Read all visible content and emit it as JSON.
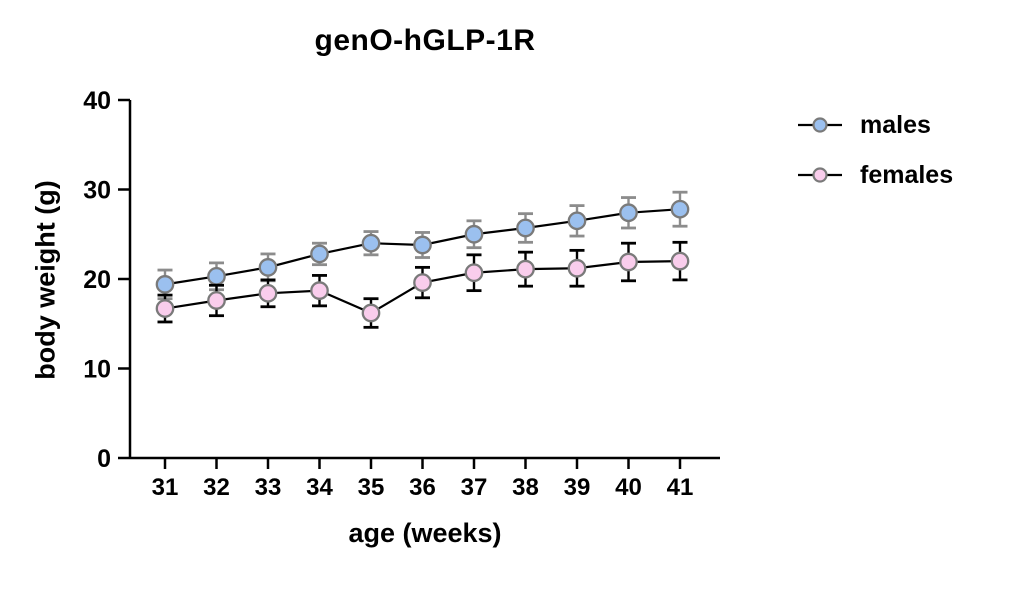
{
  "chart_data": {
    "type": "line",
    "title": "genO-hGLP-1R",
    "xlabel": "age (weeks)",
    "ylabel": "body weight (g)",
    "x": [
      31,
      32,
      33,
      34,
      35,
      36,
      37,
      38,
      39,
      40,
      41
    ],
    "ylim": [
      0,
      40
    ],
    "yticks": [
      0,
      10,
      20,
      30,
      40
    ],
    "grid": false,
    "legend_position": "right",
    "error_bars": "sem, capped, vertical",
    "series": [
      {
        "name": "males",
        "color": "#9bc0ef",
        "marker_border": "#7a7a7a",
        "error_color": "#8c8c8c",
        "line_color": "#000000",
        "values": [
          19.4,
          20.3,
          21.3,
          22.8,
          24.0,
          23.8,
          25.0,
          25.7,
          26.5,
          27.4,
          27.8
        ],
        "errors": [
          1.6,
          1.5,
          1.5,
          1.2,
          1.3,
          1.4,
          1.5,
          1.6,
          1.7,
          1.7,
          1.9
        ]
      },
      {
        "name": "females",
        "color": "#f9cdec",
        "marker_border": "#7a7a7a",
        "error_color": "#000000",
        "line_color": "#000000",
        "values": [
          16.7,
          17.6,
          18.4,
          18.7,
          16.2,
          19.6,
          20.7,
          21.1,
          21.2,
          21.9,
          22.0
        ],
        "errors": [
          1.5,
          1.7,
          1.5,
          1.7,
          1.6,
          1.7,
          2.0,
          1.9,
          2.0,
          2.1,
          2.1
        ]
      }
    ]
  }
}
